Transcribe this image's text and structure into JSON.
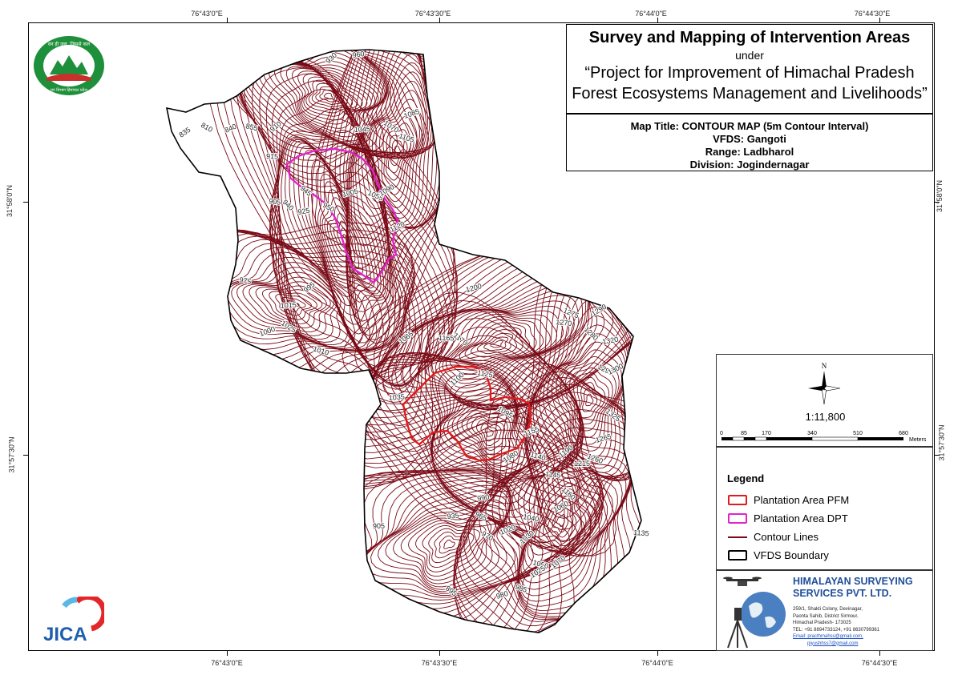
{
  "title": {
    "main": "Survey and Mapping of Intervention Areas",
    "under": "under",
    "project_line1": "“Project for Improvement of Himachal Pradesh",
    "project_line2": "Forest Ecosystems Management and Livelihoods”"
  },
  "info": {
    "map_title": "Map Title: CONTOUR MAP (5m Contour Interval)",
    "vfds": "VFDS: Gangoti",
    "range": "Range: Ladbharol",
    "division": "Division: Jogindernagar"
  },
  "coordinates": {
    "top": [
      "76°43'0\"E",
      "76°43'30\"E",
      "76°44'0\"E",
      "76°44'30\"E"
    ],
    "bottom": [
      "76°43'0\"E",
      "76°43'30\"E",
      "76°44'0\"E",
      "76°44'30\"E"
    ],
    "left": [
      "31°58'0\"N",
      "31°57'30\"N"
    ],
    "right": [
      "31°58'0\"N",
      "31°57'30\"N"
    ]
  },
  "scale": {
    "north": "N",
    "ratio": "1:11,800",
    "ticks": [
      "0",
      "85",
      "170",
      "340",
      "510",
      "680"
    ],
    "unit": "Meters"
  },
  "legend": {
    "title": "Legend",
    "items": [
      {
        "label": "Plantation Area PFM",
        "color": "#e01b1b",
        "kind": "box"
      },
      {
        "label": "Plantation Area DPT",
        "color": "#e024c8",
        "kind": "box"
      },
      {
        "label": "Contour Lines",
        "color": "#7a0a16",
        "kind": "line"
      },
      {
        "label": "VFDS Boundary",
        "color": "#000000",
        "kind": "box"
      }
    ]
  },
  "company": {
    "name_line1": "HIMALAYAN SURVEYING",
    "name_line2": "SERVICES PVT. LTD.",
    "address": [
      "259/1, Shakti Colony, Devinagar,",
      "Paonta Sahib, District Sirmour,",
      "Himachal Pradesh- 173025",
      "TEL: +91 8894733124, +91 8630799361",
      "Email: practhmahss@gmail.com,",
      "piyushhss7@gmail.com"
    ]
  },
  "logos": {
    "hp_forest_text": "वन ही जल, जिससे कल",
    "hp_forest_bottom": "वन विभाग हिमाचल प्रदेश",
    "jica": "JICA"
  },
  "contour_labels": [
    "930",
    "960",
    "810",
    "840",
    "855",
    "910",
    "1045",
    "1070",
    "1085",
    "1105",
    "835",
    "915",
    "945",
    "1005",
    "1055",
    "1090",
    "905",
    "940",
    "925",
    "950",
    "1120",
    "975",
    "995",
    "1015",
    "1025",
    "1000",
    "1010",
    "1065",
    "1165",
    "1170",
    "1200",
    "1275",
    "1290",
    "1270",
    "1280",
    "1320",
    "1295",
    "1300",
    "1125",
    "1100",
    "1035",
    "1095",
    "1155",
    "1140",
    "1190",
    "1215",
    "1325",
    "1265",
    "1260",
    "1080",
    "1145",
    "1160",
    "990",
    "965",
    "1060",
    "1040",
    "1030",
    "935",
    "970",
    "1020",
    "1050",
    "1070",
    "905",
    "895",
    "980",
    "985",
    "1025",
    "1135"
  ],
  "colors": {
    "contour": "#7a0a16",
    "pfm": "#e01b1b",
    "dpt": "#e024c8",
    "boundary": "#000000",
    "company": "#1f4e99"
  }
}
